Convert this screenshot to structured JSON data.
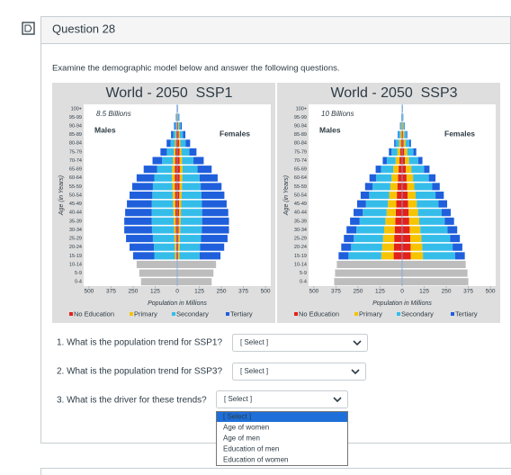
{
  "header": {
    "title": "Question 28"
  },
  "prompt": "Examine the demographic model below and answer the following questions.",
  "chart_data": [
    {
      "type": "pyramid",
      "title": "World - 2050  SSP1",
      "subtitle": "8.5 Billions",
      "side_labels": [
        "Males",
        "Females"
      ],
      "xlabel": "Population in Millions",
      "ylabel": "Age (in Years)",
      "categories": [
        "100+",
        "95-99",
        "90-94",
        "85-89",
        "80-84",
        "75-79",
        "70-74",
        "65-69",
        "60-64",
        "55-59",
        "50-54",
        "45-49",
        "40-44",
        "35-39",
        "30-34",
        "25-29",
        "20-24",
        "15-19",
        "10-14",
        "5-9",
        "0-4"
      ],
      "xlim": [
        -530,
        530
      ],
      "xticks": [
        {
          "value": -500,
          "label": "500"
        },
        {
          "value": -375,
          "label": "375"
        },
        {
          "value": -250,
          "label": "250"
        },
        {
          "value": -125,
          "label": "125"
        },
        0,
        125,
        250,
        375,
        500
      ],
      "series": [
        {
          "name": "No Education",
          "color": "#e3211c",
          "males": [
            1,
            2,
            3,
            5,
            7,
            10,
            12,
            14,
            14,
            13,
            12,
            11,
            10,
            9,
            8,
            7,
            6,
            5,
            null,
            null,
            null
          ],
          "females": [
            1,
            3,
            5,
            8,
            10,
            13,
            14,
            15,
            14,
            13,
            12,
            11,
            10,
            9,
            8,
            7,
            6,
            5,
            null,
            null,
            null
          ]
        },
        {
          "name": "Primary",
          "color": "#f6c400",
          "males": [
            0,
            1,
            2,
            4,
            6,
            9,
            12,
            15,
            16,
            15,
            14,
            13,
            12,
            11,
            10,
            9,
            8,
            8,
            null,
            null,
            null
          ],
          "females": [
            1,
            2,
            4,
            6,
            8,
            11,
            13,
            15,
            15,
            14,
            13,
            12,
            11,
            10,
            9,
            8,
            8,
            7,
            null,
            null,
            null
          ]
        },
        {
          "name": "Secondary",
          "color": "#35bdea",
          "males": [
            1,
            3,
            7,
            14,
            25,
            40,
            62,
            85,
            100,
            110,
            115,
            120,
            123,
            125,
            125,
            122,
            118,
            117,
            null,
            null,
            null
          ],
          "females": [
            1,
            4,
            10,
            18,
            30,
            45,
            65,
            85,
            98,
            106,
            112,
            117,
            120,
            122,
            122,
            120,
            116,
            115,
            null,
            null,
            null
          ]
        },
        {
          "name": "Tertiary",
          "color": "#1f5fdc",
          "males": [
            1,
            2,
            6,
            12,
            22,
            36,
            54,
            76,
            100,
            117,
            129,
            141,
            150,
            155,
            157,
            152,
            138,
            120,
            null,
            null,
            null
          ],
          "females": [
            1,
            3,
            7,
            14,
            25,
            40,
            58,
            80,
            102,
            118,
            130,
            140,
            148,
            152,
            154,
            150,
            136,
            118,
            null,
            null,
            null
          ]
        },
        {
          "color": "#bdbdbd",
          "males": [
            null,
            null,
            null,
            null,
            null,
            null,
            null,
            null,
            null,
            null,
            null,
            null,
            null,
            null,
            null,
            null,
            null,
            null,
            230,
            215,
            205
          ],
          "females": [
            null,
            null,
            null,
            null,
            null,
            null,
            null,
            null,
            null,
            null,
            null,
            null,
            null,
            null,
            null,
            null,
            null,
            null,
            220,
            205,
            195
          ]
        }
      ]
    },
    {
      "type": "pyramid",
      "title": "World - 2050  SSP3",
      "subtitle": "10 Billions",
      "side_labels": [
        "Males",
        "Females"
      ],
      "xlabel": "Population in Millions",
      "ylabel": "Age (in Years)",
      "categories": [
        "100+",
        "95-99",
        "90-94",
        "85-89",
        "80-84",
        "75-79",
        "70-74",
        "65-69",
        "60-64",
        "55-59",
        "50-54",
        "45-49",
        "40-44",
        "35-39",
        "30-34",
        "25-29",
        "20-24",
        "15-19",
        "10-14",
        "5-9",
        "0-4"
      ],
      "xlim": [
        -530,
        530
      ],
      "xticks": [
        {
          "value": -500,
          "label": "500"
        },
        {
          "value": -375,
          "label": "375"
        },
        {
          "value": -250,
          "label": "250"
        },
        {
          "value": -125,
          "label": "125"
        },
        0,
        125,
        250,
        375,
        500
      ],
      "series": [
        {
          "name": "No Education",
          "color": "#e3211c",
          "males": [
            0,
            1,
            2,
            4,
            7,
            11,
            15,
            20,
            24,
            27,
            30,
            33,
            36,
            39,
            42,
            45,
            47,
            48,
            null,
            null,
            null
          ],
          "females": [
            1,
            1,
            3,
            5,
            8,
            12,
            16,
            21,
            25,
            28,
            31,
            34,
            37,
            40,
            43,
            46,
            48,
            49,
            null,
            null,
            null
          ]
        },
        {
          "name": "Primary",
          "color": "#f6c400",
          "males": [
            1,
            1,
            3,
            6,
            10,
            16,
            22,
            30,
            36,
            40,
            44,
            48,
            52,
            56,
            60,
            63,
            66,
            70,
            null,
            null,
            null
          ],
          "females": [
            1,
            2,
            4,
            7,
            11,
            17,
            23,
            31,
            37,
            41,
            45,
            49,
            53,
            57,
            60,
            63,
            66,
            69,
            null,
            null,
            null
          ]
        },
        {
          "name": "Secondary",
          "color": "#35bdea",
          "males": [
            1,
            2,
            5,
            11,
            20,
            33,
            50,
            70,
            88,
            100,
            113,
            124,
            135,
            146,
            157,
            166,
            176,
            186,
            null,
            null,
            null
          ],
          "females": [
            1,
            3,
            6,
            12,
            22,
            35,
            52,
            72,
            89,
            101,
            113,
            123,
            134,
            144,
            154,
            163,
            172,
            182,
            null,
            null,
            null
          ]
        },
        {
          "name": "Tertiary",
          "color": "#1f5fdc",
          "males": [
            0,
            1,
            2,
            4,
            8,
            15,
            23,
            30,
            37,
            43,
            48,
            50,
            52,
            54,
            56,
            56,
            56,
            56,
            null,
            null,
            null
          ],
          "females": [
            1,
            1,
            2,
            5,
            9,
            16,
            24,
            31,
            38,
            43,
            47,
            49,
            51,
            53,
            55,
            55,
            55,
            55,
            null,
            null,
            null
          ]
        },
        {
          "color": "#bdbdbd",
          "males": [
            null,
            null,
            null,
            null,
            null,
            null,
            null,
            null,
            null,
            null,
            null,
            null,
            null,
            null,
            null,
            null,
            null,
            null,
            370,
            380,
            385
          ],
          "females": [
            null,
            null,
            null,
            null,
            null,
            null,
            null,
            null,
            null,
            null,
            null,
            null,
            null,
            null,
            null,
            null,
            null,
            null,
            360,
            370,
            375
          ]
        }
      ]
    }
  ],
  "questions": [
    {
      "text": "1. What is the population trend for SSP1?",
      "select": "[ Select ]"
    },
    {
      "text": "2. What is the population trend for SSP3?",
      "select": "[ Select ]"
    },
    {
      "text": "3. What is the driver for these trends?",
      "select": "[ Select ]"
    }
  ],
  "dropdown": {
    "options": [
      "[ Select ]",
      "Age of women",
      "Age of men",
      "Education of men",
      "Education of women"
    ]
  }
}
